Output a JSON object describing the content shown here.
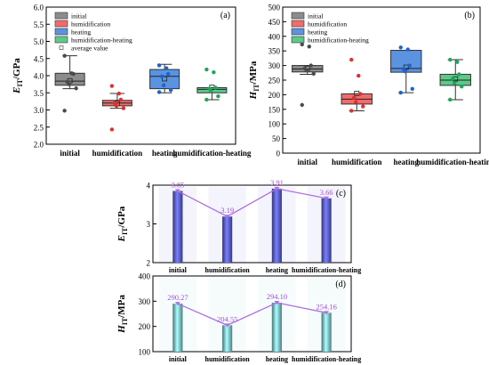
{
  "chart_data": [
    {
      "type": "box",
      "panel_label": "(a)",
      "ylabel_main": "E",
      "ylabel_sub": "IT",
      "ylabel_unit": "/GPa",
      "ylim": [
        2.0,
        6.0
      ],
      "yticks": [
        "2.0",
        "2.5",
        "3.0",
        "3.5",
        "4.0",
        "4.5",
        "5.0",
        "5.5",
        "6.0"
      ],
      "categories": [
        "initial",
        "humidification",
        "heating",
        "humidification-heating"
      ],
      "legend": [
        "initial",
        "humidification",
        "heating",
        "humidification-heating",
        "average value"
      ],
      "legend_position": "top-left",
      "colors": [
        "#8c8c8c",
        "#f26b6b",
        "#5b93e0",
        "#5cc98a"
      ],
      "point_colors": [
        "#4a4a4a",
        "#e03030",
        "#1e63c9",
        "#1fa65a"
      ],
      "boxes": [
        {
          "whisker_low": 3.62,
          "q1": 3.72,
          "median": 3.84,
          "q3": 4.07,
          "whisker_high": 4.58,
          "mean": 3.85,
          "points": [
            4.58,
            4.07,
            4.05,
            3.82,
            3.75,
            3.63,
            2.98
          ]
        },
        {
          "whisker_low": 3.05,
          "q1": 3.12,
          "median": 3.2,
          "q3": 3.28,
          "whisker_high": 3.48,
          "mean": 3.19,
          "points": [
            3.7,
            3.48,
            3.3,
            3.2,
            3.12,
            3.05,
            2.43
          ]
        },
        {
          "whisker_low": 3.5,
          "q1": 3.62,
          "median": 3.98,
          "q3": 4.18,
          "whisker_high": 4.33,
          "mean": 3.91,
          "points": [
            4.3,
            4.22,
            4.05,
            3.98,
            3.72,
            3.58,
            3.52
          ]
        },
        {
          "whisker_low": 3.3,
          "q1": 3.5,
          "median": 3.6,
          "q3": 3.65,
          "whisker_high": 3.65,
          "mean": 3.66,
          "points": [
            4.18,
            4.1,
            3.65,
            3.62,
            3.55,
            3.4,
            3.3
          ]
        }
      ]
    },
    {
      "type": "box",
      "panel_label": "(b)",
      "ylabel_main": "H",
      "ylabel_sub": "IT",
      "ylabel_unit": "/MPa",
      "ylim": [
        0,
        500
      ],
      "yticks": [
        "0",
        "50",
        "100",
        "150",
        "200",
        "250",
        "300",
        "350",
        "400",
        "450",
        "500"
      ],
      "categories": [
        "initial",
        "humidification",
        "heating",
        "humidification-heating"
      ],
      "legend": [
        "initial",
        "humidification",
        "heating",
        "humidification-heating"
      ],
      "legend_position": "top-left",
      "colors": [
        "#8c8c8c",
        "#f26b6b",
        "#5b93e0",
        "#5cc98a"
      ],
      "point_colors": [
        "#4a4a4a",
        "#e03030",
        "#1e63c9",
        "#1fa65a"
      ],
      "boxes": [
        {
          "whisker_low": 270,
          "q1": 278,
          "median": 288,
          "q3": 300,
          "whisker_high": 300,
          "mean": 290.27,
          "points": [
            372,
            365,
            300,
            290,
            283,
            272,
            165
          ]
        },
        {
          "whisker_low": 145,
          "q1": 168,
          "median": 185,
          "q3": 203,
          "whisker_high": 203,
          "mean": 204.55,
          "points": [
            320,
            265,
            203,
            190,
            175,
            160,
            145
          ]
        },
        {
          "whisker_low": 207,
          "q1": 277,
          "median": 290,
          "q3": 352,
          "whisker_high": 352,
          "mean": 294.1,
          "points": [
            362,
            355,
            300,
            288,
            280,
            220,
            207
          ]
        },
        {
          "whisker_low": 183,
          "q1": 232,
          "median": 250,
          "q3": 270,
          "whisker_high": 320,
          "mean": 254.16,
          "points": [
            320,
            312,
            270,
            255,
            240,
            228,
            183
          ]
        }
      ]
    },
    {
      "type": "bar",
      "panel_label": "(c)",
      "ylabel_main": "E",
      "ylabel_sub": "IT",
      "ylabel_unit": "/GPa",
      "ylim": [
        2,
        4
      ],
      "yticks": [
        "2",
        "3",
        "4"
      ],
      "categories": [
        "initial",
        "humidification",
        "heating",
        "humidification-heating"
      ],
      "values": [
        3.85,
        3.19,
        3.91,
        3.66
      ],
      "value_labels": [
        "3.85",
        "3.19",
        "3.91",
        "3.66"
      ],
      "bar_color": "#5a5fd8",
      "line_color": "#b070e0"
    },
    {
      "type": "bar",
      "panel_label": "(d)",
      "ylabel_main": "H",
      "ylabel_sub": "IT",
      "ylabel_unit": "/MPa",
      "ylim": [
        100,
        400
      ],
      "yticks": [
        "100",
        "200",
        "300",
        "400"
      ],
      "categories": [
        "initial",
        "humidification",
        "heating",
        "humidification-heating"
      ],
      "values": [
        290.27,
        204.55,
        294.1,
        254.16
      ],
      "value_labels": [
        "290.27",
        "204.55",
        "294.10",
        "254.16"
      ],
      "bar_color": "#7fd0d8",
      "line_color": "#b070e0"
    }
  ]
}
